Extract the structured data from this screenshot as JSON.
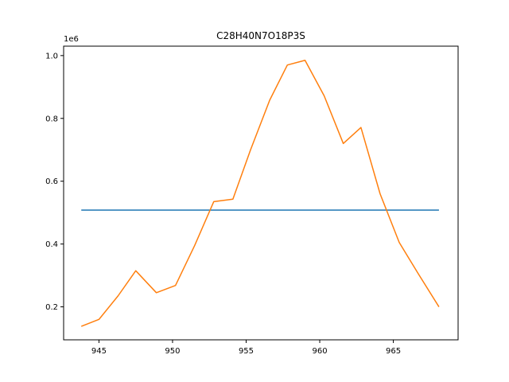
{
  "chart_data": {
    "type": "line",
    "title": "C28H40N7O18P3S",
    "xlabel": "",
    "ylabel": "",
    "y_offset_text": "1e6",
    "xlim": [
      942.6,
      969.4
    ],
    "ylim": [
      95000,
      1030000
    ],
    "x_ticks": [
      945,
      950,
      955,
      960,
      965
    ],
    "y_ticks": [
      200000,
      400000,
      600000,
      800000,
      1000000
    ],
    "y_tick_labels": [
      "0.2",
      "0.4",
      "0.6",
      "0.8",
      "1.0"
    ],
    "grid": false,
    "legend": "none",
    "series": [
      {
        "color": "#1f77b4",
        "x": [
          943.8,
          968.1
        ],
        "y": [
          508000,
          508000
        ]
      },
      {
        "color": "#ff7f0e",
        "x": [
          943.8,
          945.0,
          946.3,
          947.5,
          948.9,
          950.2,
          951.5,
          952.8,
          954.1,
          955.3,
          956.6,
          957.8,
          959.0,
          960.3,
          961.6,
          962.8,
          964.1,
          965.4,
          966.7,
          968.1
        ],
        "y": [
          138000,
          160000,
          235000,
          315000,
          245000,
          268000,
          395000,
          535000,
          543000,
          700000,
          858000,
          970000,
          985000,
          872000,
          720000,
          771000,
          560000,
          405000,
          305000,
          200000
        ]
      }
    ]
  }
}
